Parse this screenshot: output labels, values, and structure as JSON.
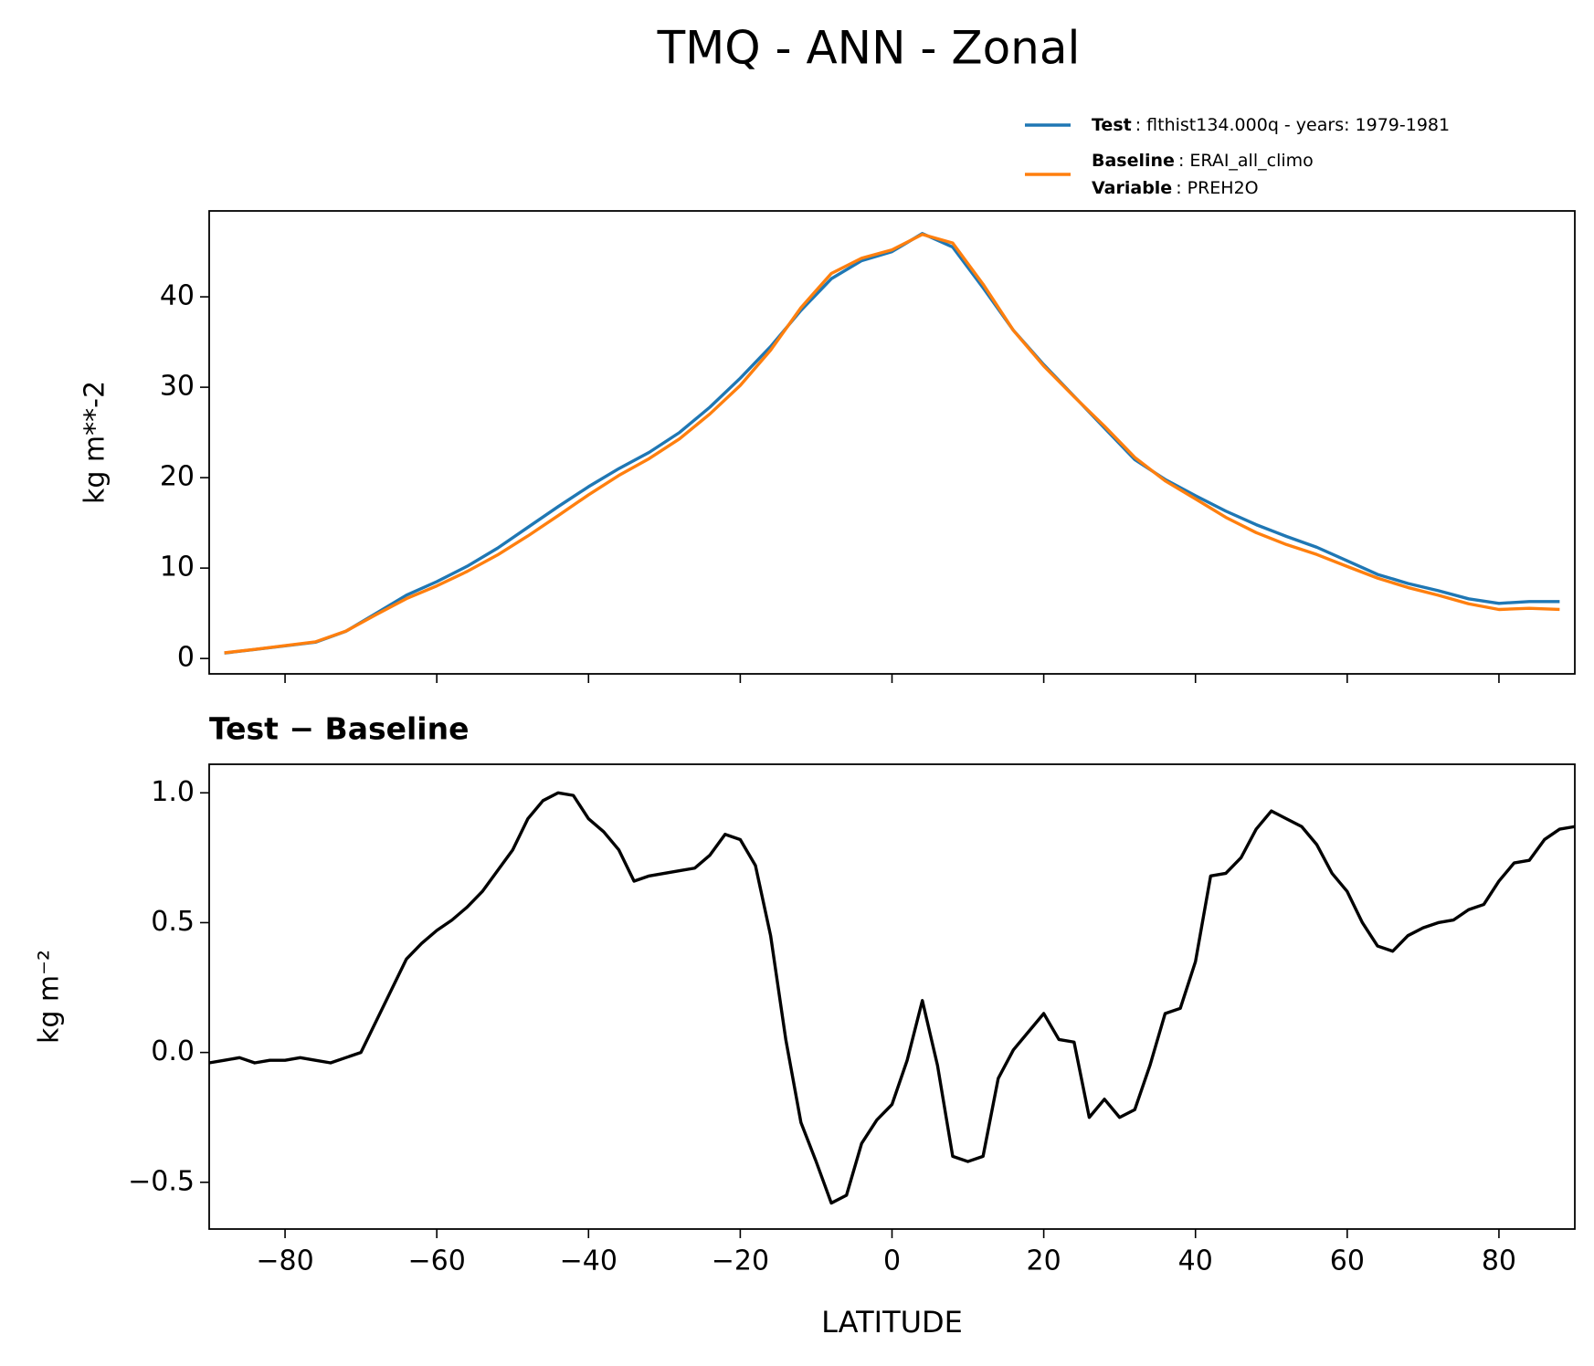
{
  "title": "TMQ - ANN - Zonal",
  "chart_data": [
    {
      "type": "line",
      "ylabel": "kg m**-2",
      "x": [
        -88,
        -84,
        -80,
        -76,
        -72,
        -68,
        -64,
        -60,
        -56,
        -52,
        -48,
        -44,
        -40,
        -36,
        -32,
        -28,
        -24,
        -20,
        -16,
        -12,
        -8,
        -4,
        0,
        4,
        8,
        12,
        16,
        20,
        24,
        28,
        32,
        36,
        40,
        44,
        48,
        52,
        56,
        60,
        64,
        68,
        72,
        76,
        80,
        84,
        88
      ],
      "series": [
        {
          "name": "Test",
          "info": ": flthist134.000q - years: 1979-1981",
          "color": "#1f77b4",
          "values": [
            0.6,
            1.0,
            1.4,
            1.8,
            3.0,
            5.0,
            7.0,
            8.5,
            10.2,
            12.2,
            14.5,
            16.8,
            19.0,
            21.0,
            22.8,
            25.0,
            27.8,
            31.0,
            34.5,
            38.5,
            42.0,
            44.0,
            45.0,
            47.0,
            45.5,
            41.0,
            36.3,
            32.5,
            29.0,
            25.5,
            22.0,
            19.8,
            18.0,
            16.3,
            14.8,
            13.5,
            12.3,
            10.8,
            9.3,
            8.3,
            7.5,
            6.6,
            6.1,
            6.3,
            6.3
          ]
        },
        {
          "name": "Baseline",
          "info": ": ERAI_all_climo",
          "extra_name": "Variable",
          "extra_info": ": PREH2O",
          "color": "#ff7f0e",
          "values": [
            0.63,
            1.01,
            1.43,
            1.84,
            3.02,
            4.85,
            6.62,
            8.03,
            9.63,
            11.45,
            13.55,
            15.8,
            18.1,
            20.25,
            22.11,
            24.3,
            27.05,
            30.2,
            34.1,
            38.8,
            42.58,
            44.27,
            45.2,
            46.9,
            45.95,
            41.4,
            36.29,
            32.35,
            28.96,
            25.7,
            22.24,
            19.65,
            17.65,
            15.61,
            13.92,
            12.6,
            11.5,
            10.18,
            8.89,
            7.85,
            7.0,
            6.05,
            5.42,
            5.55,
            5.43
          ]
        }
      ],
      "xlim": [
        -90,
        90
      ],
      "xticks": [
        -80,
        -60,
        -40,
        -20,
        0,
        20,
        40,
        60,
        80
      ],
      "ylim": [
        -1.7,
        49.5
      ],
      "yticks": [
        0,
        10,
        20,
        30,
        40
      ]
    },
    {
      "type": "line",
      "title": "Test − Baseline",
      "ylabel": "kg m⁻²",
      "xlabel": "LATITUDE",
      "x": [
        -90,
        -88,
        -86,
        -84,
        -82,
        -80,
        -78,
        -76,
        -74,
        -72,
        -70,
        -68,
        -66,
        -64,
        -62,
        -60,
        -58,
        -56,
        -54,
        -52,
        -50,
        -48,
        -46,
        -44,
        -42,
        -40,
        -38,
        -36,
        -34,
        -32,
        -30,
        -28,
        -26,
        -24,
        -22,
        -20,
        -18,
        -16,
        -14,
        -12,
        -10,
        -8,
        -6,
        -4,
        -2,
        0,
        2,
        4,
        6,
        8,
        10,
        12,
        14,
        16,
        18,
        20,
        22,
        24,
        26,
        28,
        30,
        32,
        34,
        36,
        38,
        40,
        42,
        44,
        46,
        48,
        50,
        52,
        54,
        56,
        58,
        60,
        62,
        64,
        66,
        68,
        70,
        72,
        74,
        76,
        78,
        80,
        82,
        84,
        86,
        88,
        90
      ],
      "series": [
        {
          "color": "#000000",
          "values": [
            -0.04,
            -0.03,
            -0.02,
            -0.04,
            -0.03,
            -0.03,
            -0.02,
            -0.03,
            -0.04,
            -0.02,
            0.0,
            0.12,
            0.24,
            0.36,
            0.42,
            0.47,
            0.51,
            0.56,
            0.62,
            0.7,
            0.78,
            0.9,
            0.97,
            1.0,
            0.99,
            0.9,
            0.85,
            0.78,
            0.66,
            0.68,
            0.69,
            0.7,
            0.71,
            0.76,
            0.84,
            0.82,
            0.72,
            0.45,
            0.05,
            -0.27,
            -0.42,
            -0.58,
            -0.55,
            -0.35,
            -0.26,
            -0.2,
            -0.03,
            0.2,
            -0.05,
            -0.4,
            -0.42,
            -0.4,
            -0.1,
            0.01,
            0.08,
            0.15,
            0.05,
            0.04,
            -0.25,
            -0.18,
            -0.25,
            -0.22,
            -0.05,
            0.15,
            0.17,
            0.35,
            0.68,
            0.69,
            0.75,
            0.86,
            0.93,
            0.9,
            0.87,
            0.8,
            0.69,
            0.62,
            0.5,
            0.41,
            0.39,
            0.45,
            0.48,
            0.5,
            0.51,
            0.55,
            0.57,
            0.66,
            0.73,
            0.74,
            0.82,
            0.86,
            0.87
          ]
        }
      ],
      "xlim": [
        -90,
        90
      ],
      "xticks": [
        {
          "value": -80,
          "label": "−80"
        },
        {
          "value": -60,
          "label": "−60"
        },
        {
          "value": -40,
          "label": "−40"
        },
        {
          "value": -20,
          "label": "−20"
        },
        0,
        20,
        40,
        60,
        80
      ],
      "ylim": [
        -0.68,
        1.11
      ],
      "yticks": [
        {
          "value": -0.5,
          "label": "−0.5"
        },
        {
          "value": 0,
          "label": "0.0"
        },
        {
          "value": 0.5,
          "label": "0.5"
        },
        {
          "value": 1,
          "label": "1.0"
        }
      ]
    }
  ]
}
